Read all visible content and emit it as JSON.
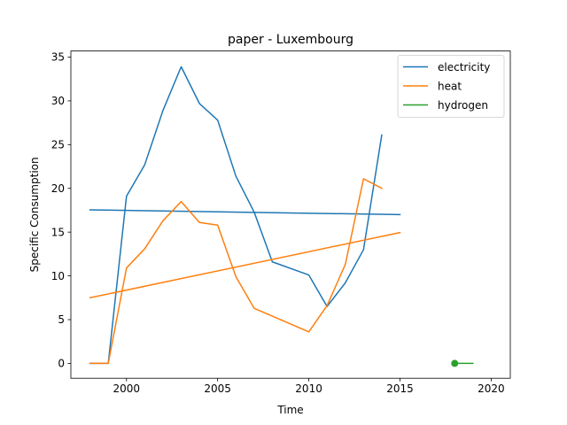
{
  "chart_data": {
    "type": "line",
    "title": "paper - Luxembourg",
    "xlabel": "Time",
    "ylabel": "Specific Consumption",
    "xlim": [
      1996.95,
      2021.05
    ],
    "ylim": [
      -1.7,
      35.7
    ],
    "xticks": [
      2000,
      2005,
      2010,
      2015,
      2020
    ],
    "yticks": [
      0,
      5,
      10,
      15,
      20,
      25,
      30,
      35
    ],
    "grid": false,
    "legend": "top-right",
    "series": [
      {
        "name": "electricity",
        "color": "#1f77b4",
        "segments": [
          [
            [
              1998,
              17.55
            ],
            [
              2015,
              17.0
            ]
          ],
          [
            [
              1998,
              0
            ],
            [
              1999,
              0
            ],
            [
              2000,
              19.1
            ],
            [
              2001,
              22.7
            ],
            [
              2002,
              28.9
            ],
            [
              2003,
              33.9
            ],
            [
              2004,
              29.7
            ],
            [
              2005,
              27.8
            ],
            [
              2006,
              21.4
            ],
            [
              2007,
              17.3
            ],
            [
              2008,
              11.6
            ],
            [
              2010,
              10.1
            ],
            [
              2011,
              6.5
            ],
            [
              2012,
              9.2
            ],
            [
              2013,
              13.0
            ],
            [
              2014,
              26.1
            ]
          ]
        ],
        "markers": []
      },
      {
        "name": "heat",
        "color": "#ff7f0e",
        "segments": [
          [
            [
              1998,
              7.5
            ],
            [
              2015,
              14.95
            ]
          ],
          [
            [
              1998,
              0
            ],
            [
              1999,
              0
            ],
            [
              2000,
              10.9
            ],
            [
              2001,
              13.1
            ],
            [
              2002,
              16.3
            ],
            [
              2003,
              18.5
            ],
            [
              2004,
              16.1
            ],
            [
              2005,
              15.8
            ],
            [
              2006,
              9.9
            ],
            [
              2007,
              6.3
            ],
            [
              2010,
              3.6
            ],
            [
              2011,
              6.6
            ],
            [
              2012,
              11.3
            ],
            [
              2013,
              21.1
            ],
            [
              2014,
              20.0
            ]
          ]
        ],
        "markers": []
      },
      {
        "name": "hydrogen",
        "color": "#2ca02c",
        "segments": [
          [
            [
              2018,
              0
            ],
            [
              2019,
              0
            ]
          ]
        ],
        "markers": [
          [
            2018,
            0
          ]
        ]
      }
    ]
  }
}
